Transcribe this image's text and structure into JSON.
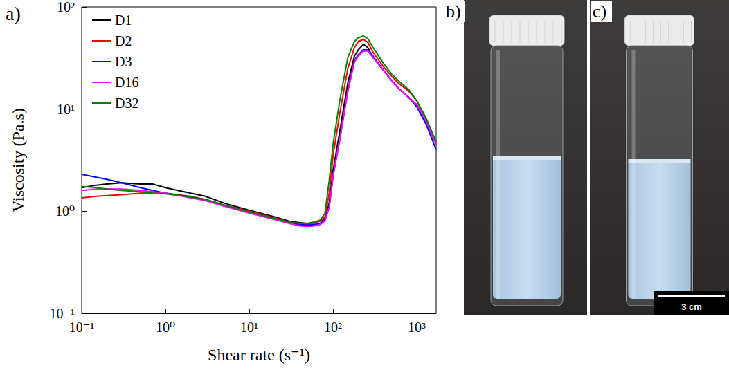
{
  "chart_data": {
    "type": "line",
    "panel_label": "a)",
    "x_label": "Shear rate (s⁻¹)",
    "y_label": "Viscosity (Pa.s)",
    "log": true,
    "grid": false,
    "legend": "upper left",
    "xlim": [
      0.1,
      1700
    ],
    "ylim": [
      0.1,
      100
    ],
    "xticks": [
      {
        "value": 0.1,
        "label": "10⁻¹"
      },
      {
        "value": 1,
        "label": "10⁰"
      },
      {
        "value": 10,
        "label": "10¹"
      },
      {
        "value": 100,
        "label": "10²"
      },
      {
        "value": 1000,
        "label": "10³"
      }
    ],
    "yticks": [
      {
        "value": 0.1,
        "label": "10⁻¹"
      },
      {
        "value": 1,
        "label": "10⁰"
      },
      {
        "value": 10,
        "label": "10¹"
      },
      {
        "value": 100,
        "label": "10²"
      }
    ],
    "x": [
      0.1,
      0.15,
      0.2,
      0.3,
      0.5,
      0.7,
      1,
      2,
      3,
      5,
      10,
      20,
      30,
      40,
      50,
      60,
      70,
      80,
      90,
      100,
      120,
      150,
      180,
      200,
      230,
      260,
      300,
      400,
      500,
      600,
      800,
      1000,
      1300,
      1700
    ],
    "series": [
      {
        "name": "D1",
        "color": "#000000",
        "values": [
          1.7,
          1.8,
          1.85,
          1.9,
          1.85,
          1.85,
          1.7,
          1.5,
          1.4,
          1.2,
          1.02,
          0.88,
          0.8,
          0.77,
          0.76,
          0.78,
          0.8,
          0.85,
          1.2,
          2.5,
          6,
          18,
          33,
          38,
          43,
          40,
          32,
          24,
          19,
          16,
          13,
          11,
          7.5,
          4.5
        ]
      },
      {
        "name": "D2",
        "color": "#ff0000",
        "values": [
          1.35,
          1.4,
          1.42,
          1.45,
          1.5,
          1.5,
          1.5,
          1.4,
          1.3,
          1.15,
          1.0,
          0.86,
          0.78,
          0.75,
          0.74,
          0.76,
          0.8,
          0.88,
          1.5,
          3.5,
          9,
          25,
          40,
          46,
          48,
          45,
          36,
          26,
          21,
          18,
          15,
          12,
          8,
          4.5
        ]
      },
      {
        "name": "D3",
        "color": "#0000ff",
        "values": [
          2.3,
          2.15,
          2.05,
          1.9,
          1.7,
          1.6,
          1.5,
          1.38,
          1.3,
          1.15,
          0.98,
          0.84,
          0.77,
          0.74,
          0.73,
          0.74,
          0.76,
          0.82,
          1.1,
          2.2,
          5,
          15,
          30,
          34,
          38,
          38,
          33,
          24,
          19,
          16,
          13,
          10.5,
          7,
          4
        ]
      },
      {
        "name": "D16",
        "color": "#ff00ff",
        "values": [
          1.6,
          1.65,
          1.65,
          1.65,
          1.6,
          1.55,
          1.5,
          1.35,
          1.27,
          1.12,
          0.96,
          0.83,
          0.76,
          0.72,
          0.71,
          0.72,
          0.74,
          0.8,
          1.1,
          2.2,
          5,
          15,
          29,
          33,
          37,
          37,
          32,
          24,
          19,
          16,
          13,
          11,
          7.5,
          4.5
        ]
      },
      {
        "name": "D32",
        "color": "#008000",
        "values": [
          1.75,
          1.7,
          1.65,
          1.6,
          1.55,
          1.5,
          1.48,
          1.38,
          1.3,
          1.15,
          0.98,
          0.85,
          0.78,
          0.76,
          0.76,
          0.78,
          0.82,
          0.95,
          2,
          4.5,
          12,
          32,
          46,
          50,
          52,
          49,
          40,
          28,
          22,
          19,
          15.5,
          12,
          8,
          4.8
        ]
      }
    ]
  },
  "photos": [
    {
      "label": "b)"
    },
    {
      "label": "c)",
      "scale_bar": "3 cm"
    }
  ]
}
